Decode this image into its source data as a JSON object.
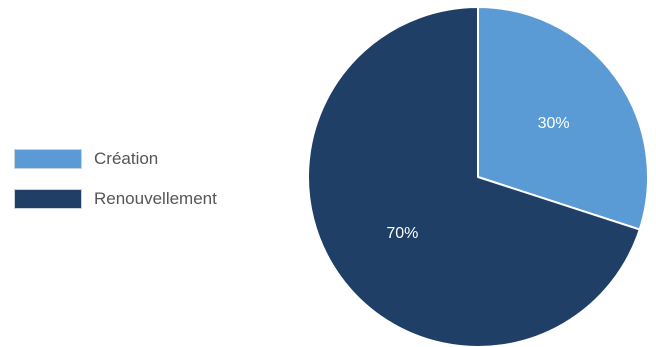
{
  "chart_data": {
    "type": "pie",
    "title": "",
    "categories": [
      "Création",
      "Renouvellement"
    ],
    "values": [
      30,
      70
    ],
    "value_labels": [
      "30%",
      "70%"
    ],
    "colors": [
      "#5b9bd5",
      "#1f3f66"
    ],
    "legend_position": "left",
    "start_angle_deg": 0,
    "direction": "clockwise"
  },
  "legend": {
    "items": [
      {
        "label": "Création",
        "color": "#5b9bd5"
      },
      {
        "label": "Renouvellement",
        "color": "#1f3f66"
      }
    ]
  }
}
